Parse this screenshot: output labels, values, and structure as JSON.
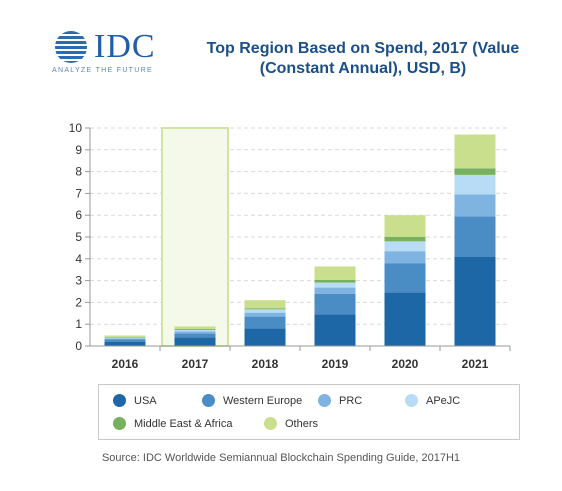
{
  "logo": {
    "name": "IDC",
    "tagline": "ANALYZE THE FUTURE"
  },
  "colors": {
    "highlight_fill": "#f4f9e9",
    "highlight_stroke": "#cfe5a1",
    "gridline": "#d9d9d9",
    "axis": "#999999"
  },
  "chart_data": {
    "type": "bar",
    "stacked": true,
    "title_line1": "Top Region Based on Spend, 2017 (Value",
    "title_line2": "(Constant Annual), USD, B)",
    "categories": [
      "2016",
      "2017",
      "2018",
      "2019",
      "2020",
      "2021"
    ],
    "highlight_category": "2017",
    "ylim": [
      0,
      10
    ],
    "yticks": [
      "0",
      "1",
      "2",
      "3",
      "4",
      "5",
      "6",
      "7",
      "8",
      "9",
      "10"
    ],
    "grid": true,
    "legend_position": "bottom",
    "series": [
      {
        "name": "USA",
        "color": "#1d67a6",
        "values": [
          0.2,
          0.4,
          0.8,
          1.45,
          2.45,
          4.1
        ]
      },
      {
        "name": "Western Europe",
        "color": "#4a8cc4",
        "values": [
          0.1,
          0.17,
          0.55,
          0.95,
          1.35,
          1.85
        ]
      },
      {
        "name": "PRC",
        "color": "#7fb4e0",
        "values": [
          0.05,
          0.1,
          0.18,
          0.28,
          0.55,
          1.0
        ]
      },
      {
        "name": "APeJC",
        "color": "#b8dcf5",
        "values": [
          0.04,
          0.07,
          0.15,
          0.23,
          0.45,
          0.9
        ]
      },
      {
        "name": "Middle East & Africa",
        "color": "#77b15d",
        "values": [
          0.02,
          0.04,
          0.05,
          0.12,
          0.2,
          0.3
        ]
      },
      {
        "name": "Others",
        "color": "#c9df8e",
        "values": [
          0.07,
          0.12,
          0.37,
          0.62,
          1.0,
          1.55
        ]
      }
    ]
  },
  "source": "Source: IDC Worldwide Semiannual Blockchain Spending Guide, 2017H1"
}
